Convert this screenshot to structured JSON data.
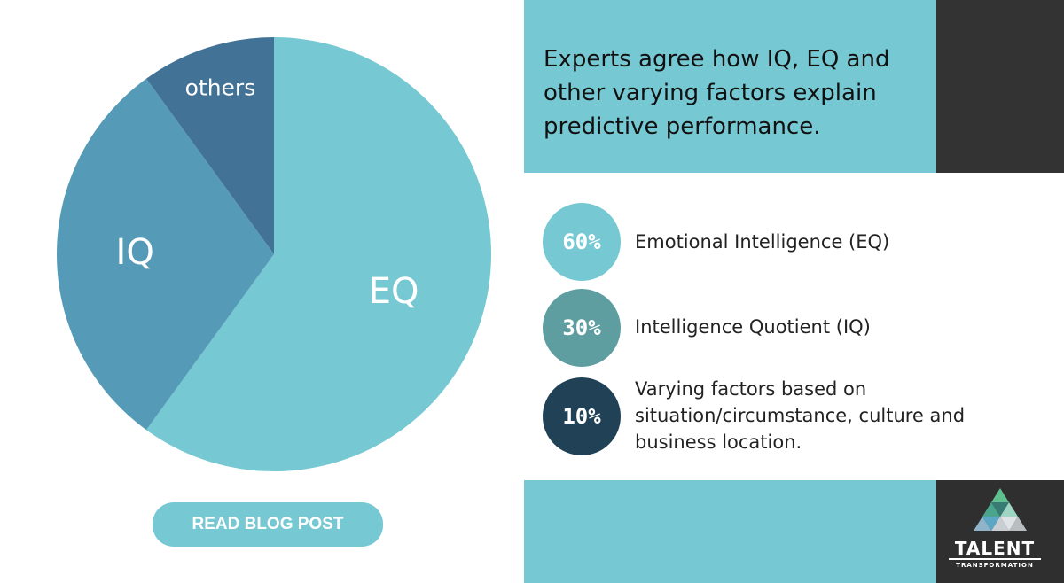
{
  "colors": {
    "eq": "#76c8d3",
    "iq": "#559bb7",
    "others": "#437297",
    "accent": "#76c8d3",
    "dark": "#333333",
    "circle_iq": "#5e9ea1",
    "circle_others": "#214256"
  },
  "chart_data": {
    "type": "pie",
    "slices": [
      {
        "label": "EQ",
        "value": 60
      },
      {
        "label": "IQ",
        "value": 30
      },
      {
        "label": "others",
        "value": 10
      }
    ]
  },
  "headline": "Experts agree how IQ, EQ and other varying factors explain predictive performance.",
  "stats": [
    {
      "percent": "60%",
      "label": "Emotional Intelligence (EQ)"
    },
    {
      "percent": "30%",
      "label": "Intelligence Quotient (IQ)"
    },
    {
      "percent": "10%",
      "label": "Varying factors based on situation/circumstance, culture and business location."
    }
  ],
  "cta_label": "READ BLOG POST",
  "logo": {
    "title": "TALENT",
    "subtitle": "TRANSFORMATION"
  }
}
